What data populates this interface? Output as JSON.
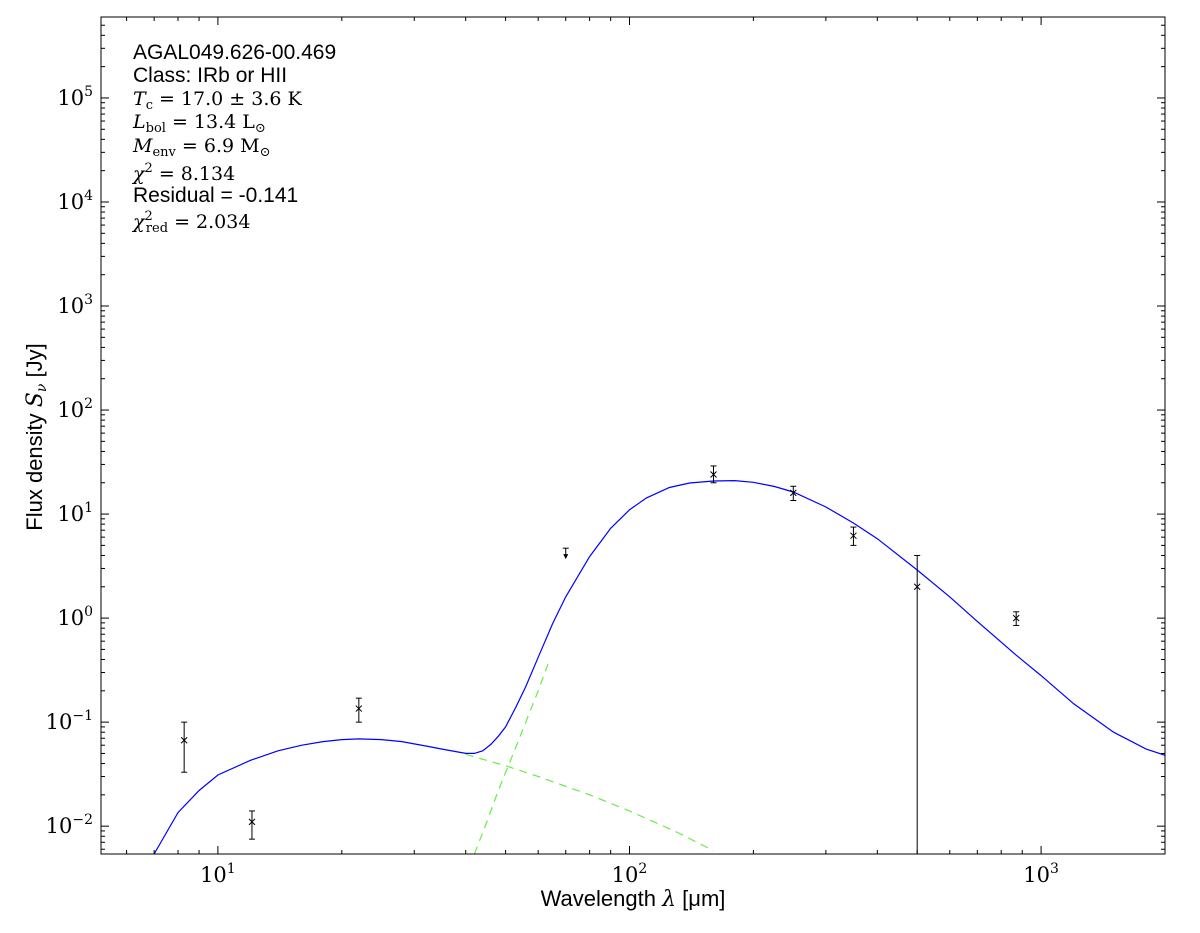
{
  "chart_data": {
    "type": "scatter",
    "xscale": "log",
    "yscale": "log",
    "xlim": [
      5.2,
      2000
    ],
    "ylim": [
      0.0054,
      600000
    ],
    "xlabel": "Wavelength λ [μm]",
    "ylabel": "Flux density S_ν [Jy]",
    "xticks": [
      {
        "value": 10,
        "base": "10",
        "exp": "1"
      },
      {
        "value": 100,
        "base": "10",
        "exp": "2"
      },
      {
        "value": 1000,
        "base": "10",
        "exp": "3"
      }
    ],
    "yticks": [
      {
        "value": 0.01,
        "base": "10",
        "exp": "−2"
      },
      {
        "value": 0.1,
        "base": "10",
        "exp": "−1"
      },
      {
        "value": 1,
        "base": "10",
        "exp": "0"
      },
      {
        "value": 10,
        "base": "10",
        "exp": "1"
      },
      {
        "value": 100,
        "base": "10",
        "exp": "2"
      },
      {
        "value": 1000,
        "base": "10",
        "exp": "3"
      },
      {
        "value": 10000,
        "base": "10",
        "exp": "4"
      },
      {
        "value": 100000,
        "base": "10",
        "exp": "5"
      }
    ],
    "annotations": {
      "source": "AGAL049.626-00.469",
      "class": "Class: IRb or HII",
      "tc": "T_c = 17.0 ± 3.6 K",
      "lbol": "L_bol = 13.4 L_⊙",
      "menv": "M_env = 6.9 M_⊙",
      "chi2": "χ² = 8.134",
      "residual": "Residual = -0.141",
      "chi2red": "χ²_red = 2.034"
    },
    "points": [
      {
        "x": 8.28,
        "y": 0.067,
        "ylo": 0.033,
        "yhi": 0.1
      },
      {
        "x": 12.1,
        "y": 0.011,
        "ylo": 0.0075,
        "yhi": 0.014
      },
      {
        "x": 22.0,
        "y": 0.135,
        "ylo": 0.1,
        "yhi": 0.17
      },
      {
        "x": 160,
        "y": 24,
        "ylo": 20,
        "yhi": 29
      },
      {
        "x": 250,
        "y": 16,
        "ylo": 13.5,
        "yhi": 18.5
      },
      {
        "x": 350,
        "y": 6.2,
        "ylo": 5.0,
        "yhi": 7.5
      },
      {
        "x": 500,
        "y": 2.0,
        "ylo": 0.0054,
        "yhi": 4.0
      },
      {
        "x": 870,
        "y": 1.0,
        "ylo": 0.85,
        "yhi": 1.15
      }
    ],
    "upper_limits": [
      {
        "x": 70,
        "y": 4.7
      }
    ],
    "series": [
      {
        "line": "solid",
        "color": "#0000ff",
        "x": [
          7.0,
          8,
          9,
          10,
          12,
          14,
          16,
          18,
          20,
          22,
          25,
          28,
          32,
          36,
          40,
          42,
          44,
          46,
          48,
          50,
          53,
          56,
          60,
          65,
          70,
          80,
          90,
          100,
          110,
          125,
          140,
          160,
          180,
          200,
          225,
          250,
          300,
          350,
          400,
          500,
          600,
          700,
          870,
          1000,
          1200,
          1500,
          1800,
          2000
        ],
        "y": [
          0.0054,
          0.0135,
          0.022,
          0.031,
          0.043,
          0.053,
          0.06,
          0.065,
          0.068,
          0.069,
          0.068,
          0.065,
          0.059,
          0.054,
          0.05,
          0.05,
          0.053,
          0.061,
          0.073,
          0.09,
          0.14,
          0.22,
          0.42,
          0.88,
          1.6,
          3.9,
          7.3,
          11.0,
          14.3,
          18.0,
          19.9,
          20.8,
          21.0,
          20.2,
          18.4,
          16.3,
          11.7,
          8.2,
          5.8,
          2.9,
          1.6,
          0.93,
          0.44,
          0.28,
          0.15,
          0.08,
          0.055,
          0.048
        ]
      },
      {
        "line": "dashed",
        "color": "#66ee44",
        "x": [
          40,
          50,
          60,
          80,
          100,
          130,
          160
        ],
        "y": [
          0.049,
          0.038,
          0.03,
          0.02,
          0.014,
          0.0088,
          0.0058
        ]
      },
      {
        "line": "dashed",
        "color": "#66ee44",
        "x": [
          42,
          45,
          48,
          52,
          56,
          60,
          64
        ],
        "y": [
          0.0054,
          0.011,
          0.022,
          0.048,
          0.1,
          0.2,
          0.4
        ]
      }
    ]
  }
}
